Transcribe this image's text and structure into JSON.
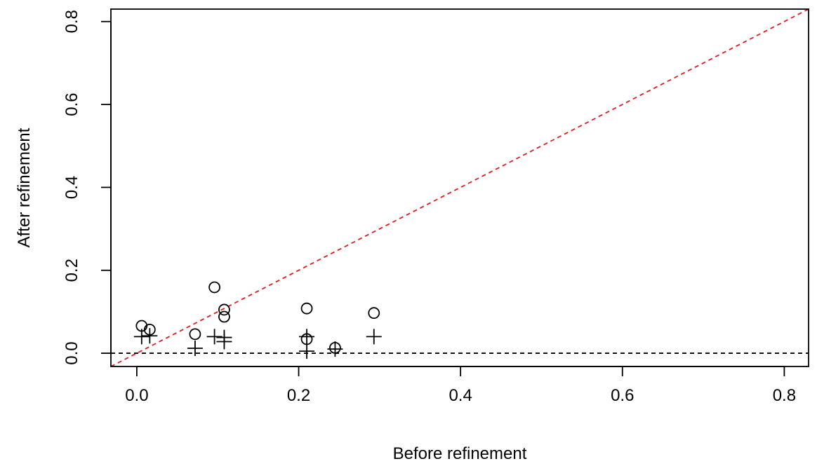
{
  "chart_data": {
    "type": "scatter",
    "xlabel": "Before refinement",
    "ylabel": "After refinement",
    "xlim": [
      -0.032,
      0.83
    ],
    "ylim": [
      -0.032,
      0.83
    ],
    "x_ticks": [
      0.0,
      0.2,
      0.4,
      0.6,
      0.8
    ],
    "x_tick_labels": [
      "0.0",
      "0.2",
      "0.4",
      "0.6",
      "0.8"
    ],
    "y_ticks": [
      0.0,
      0.2,
      0.4,
      0.6,
      0.8
    ],
    "y_tick_labels": [
      "0.0",
      "0.2",
      "0.4",
      "0.6",
      "0.8"
    ],
    "grid": false,
    "series": [
      {
        "marker": "circle",
        "color": "#000000",
        "points": [
          {
            "x": 0.006,
            "y": 0.066
          },
          {
            "x": 0.016,
            "y": 0.057
          },
          {
            "x": 0.072,
            "y": 0.046
          },
          {
            "x": 0.096,
            "y": 0.159
          },
          {
            "x": 0.108,
            "y": 0.105
          },
          {
            "x": 0.108,
            "y": 0.088
          },
          {
            "x": 0.21,
            "y": 0.108
          },
          {
            "x": 0.21,
            "y": 0.034
          },
          {
            "x": 0.245,
            "y": 0.013
          },
          {
            "x": 0.293,
            "y": 0.097
          }
        ]
      },
      {
        "marker": "plus",
        "color": "#000000",
        "points": [
          {
            "x": 0.006,
            "y": 0.04
          },
          {
            "x": 0.016,
            "y": 0.042
          },
          {
            "x": 0.072,
            "y": 0.012
          },
          {
            "x": 0.096,
            "y": 0.04
          },
          {
            "x": 0.108,
            "y": 0.038
          },
          {
            "x": 0.108,
            "y": 0.028
          },
          {
            "x": 0.21,
            "y": 0.04
          },
          {
            "x": 0.21,
            "y": 0.005
          },
          {
            "x": 0.245,
            "y": 0.01
          },
          {
            "x": 0.293,
            "y": 0.04
          }
        ]
      }
    ],
    "reference_lines": [
      {
        "kind": "diagonal",
        "slope": 1,
        "intercept": 0,
        "color": "#e31a1c",
        "style": "dashed"
      },
      {
        "kind": "horizontal",
        "y": 0,
        "color": "#000000",
        "style": "dashed"
      }
    ]
  }
}
